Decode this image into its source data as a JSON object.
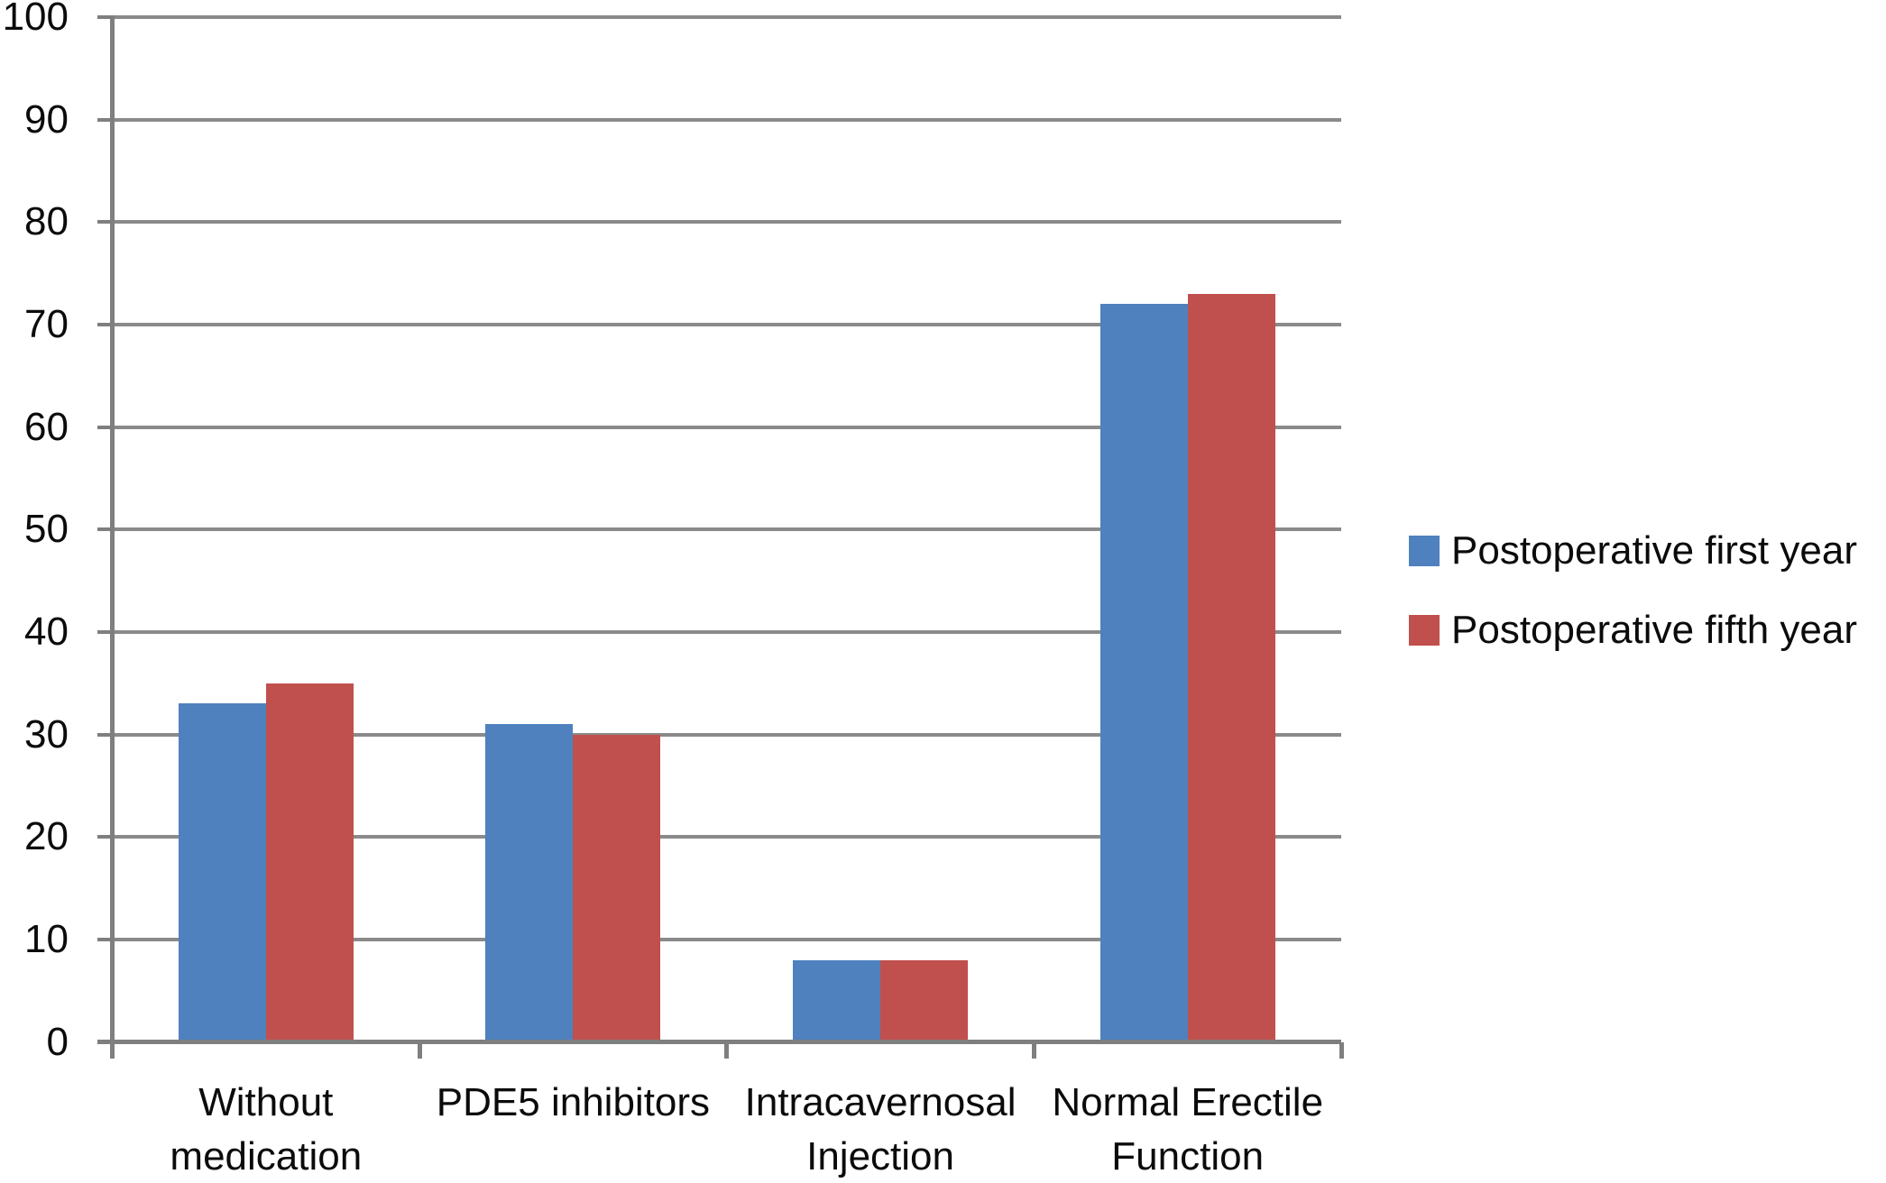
{
  "chart_data": {
    "type": "bar",
    "title": "",
    "xlabel": "",
    "ylabel": "",
    "categories": [
      "Without\nmedication",
      "PDE5 inhibitors",
      "Intracavernosal\nInjection",
      "Normal Erectile\nFunction"
    ],
    "series": [
      {
        "name": "Postoperative first year",
        "color": "#4E81BD",
        "values": [
          33,
          31,
          8,
          72
        ]
      },
      {
        "name": "Postoperative fifth year",
        "color": "#C0504D",
        "values": [
          35,
          30,
          8,
          73
        ]
      }
    ],
    "ylim": [
      0,
      100
    ],
    "ytick_step": 10,
    "yticks": [
      0,
      10,
      20,
      30,
      40,
      50,
      60,
      70,
      80,
      90,
      100
    ],
    "grid": true,
    "legend_position": "right"
  },
  "colors": {
    "gridline": "#8A8A8A",
    "axis": "#7F7F7F",
    "text": "#0b0b0b",
    "background": "#FFFFFF"
  }
}
